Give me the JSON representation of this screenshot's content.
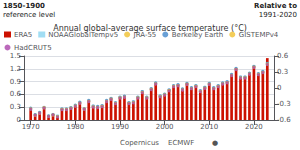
{
  "chart_data": {
    "type": "bar",
    "title": "Annual global-average surface temperature (°C)",
    "annotations": [
      "1850-1900",
      "reference level",
      "Relative to",
      "1991-2020",
      "Copernicus",
      "ECMWF",
      "●"
    ],
    "x": [
      1970,
      1971,
      1972,
      1973,
      1974,
      1975,
      1976,
      1977,
      1978,
      1979,
      1980,
      1981,
      1982,
      1983,
      1984,
      1985,
      1986,
      1987,
      1988,
      1989,
      1990,
      1991,
      1992,
      1993,
      1994,
      1995,
      1996,
      1997,
      1998,
      1999,
      2000,
      2001,
      2002,
      2003,
      2004,
      2005,
      2006,
      2007,
      2008,
      2009,
      2010,
      2011,
      2012,
      2013,
      2014,
      2015,
      2016,
      2017,
      2018,
      2019,
      2020,
      2021,
      2022,
      2023
    ],
    "xlim": [
      1968.5,
      2024.5
    ],
    "xticks": [
      1970,
      1980,
      1990,
      2000,
      2010,
      2020
    ],
    "ylim": [
      0,
      1.5
    ],
    "yticks": [
      0,
      0.3,
      0.6,
      0.9,
      1.2,
      1.5
    ],
    "y2lim": [
      -0.6,
      0.6
    ],
    "y2ticks": [
      -0.6,
      -0.3,
      0,
      0.3,
      0.6
    ],
    "grid": true,
    "legend": "upper left",
    "series": [
      {
        "name": "ERA5",
        "type": "bar",
        "color": "#cc1100",
        "values": [
          0.28,
          0.13,
          0.18,
          0.3,
          0.1,
          0.14,
          0.1,
          0.27,
          0.27,
          0.3,
          0.35,
          0.42,
          0.28,
          0.47,
          0.34,
          0.33,
          0.35,
          0.47,
          0.52,
          0.42,
          0.55,
          0.57,
          0.42,
          0.44,
          0.55,
          0.68,
          0.55,
          0.75,
          0.88,
          0.58,
          0.62,
          0.72,
          0.82,
          0.84,
          0.74,
          0.87,
          0.77,
          0.82,
          0.7,
          0.78,
          0.87,
          0.77,
          0.82,
          0.88,
          0.91,
          1.08,
          1.22,
          1.02,
          1.02,
          1.11,
          1.27,
          1.1,
          1.15,
          1.45
        ]
      },
      {
        "name": "NOAAGlobalTempv5",
        "type": "scatter",
        "marker": "square",
        "color": "#89d4f0",
        "values": [
          0.26,
          0.12,
          0.17,
          0.29,
          0.09,
          0.13,
          0.09,
          0.26,
          0.26,
          0.29,
          0.34,
          0.41,
          0.26,
          0.45,
          0.32,
          0.31,
          0.33,
          0.45,
          0.5,
          0.4,
          0.53,
          0.55,
          0.4,
          0.42,
          0.53,
          0.66,
          0.53,
          0.73,
          0.86,
          0.56,
          0.6,
          0.7,
          0.8,
          0.82,
          0.72,
          0.85,
          0.75,
          0.8,
          0.68,
          0.76,
          0.85,
          0.75,
          0.8,
          0.86,
          0.89,
          1.06,
          1.2,
          1.0,
          1.0,
          1.09,
          1.25,
          1.08,
          1.13,
          1.32
        ]
      },
      {
        "name": "JRA-55",
        "type": "scatter",
        "marker": "circle",
        "color": "#f0c030",
        "values": [
          0.27,
          0.12,
          0.17,
          0.29,
          0.09,
          0.12,
          0.08,
          0.25,
          0.25,
          0.28,
          0.33,
          0.4,
          0.26,
          0.44,
          0.31,
          0.3,
          0.32,
          0.44,
          0.49,
          0.39,
          0.52,
          0.54,
          0.39,
          0.41,
          0.52,
          0.65,
          0.52,
          0.72,
          0.85,
          0.55,
          0.59,
          0.69,
          0.79,
          0.81,
          0.71,
          0.84,
          0.74,
          0.79,
          0.67,
          0.75,
          0.84,
          0.74,
          0.79,
          0.85,
          0.88,
          1.05,
          1.19,
          0.99,
          0.99,
          1.08,
          1.24,
          1.07,
          1.12,
          1.31
        ]
      },
      {
        "name": "Berkeley Earth",
        "type": "scatter",
        "marker": "circle",
        "color": "#4488cc",
        "values": [
          0.28,
          0.13,
          0.18,
          0.3,
          0.1,
          0.13,
          0.09,
          0.26,
          0.26,
          0.29,
          0.35,
          0.42,
          0.27,
          0.46,
          0.33,
          0.32,
          0.34,
          0.46,
          0.51,
          0.41,
          0.54,
          0.56,
          0.41,
          0.43,
          0.54,
          0.67,
          0.54,
          0.74,
          0.87,
          0.57,
          0.61,
          0.71,
          0.81,
          0.83,
          0.73,
          0.86,
          0.76,
          0.81,
          0.69,
          0.77,
          0.86,
          0.76,
          0.81,
          0.87,
          0.9,
          1.07,
          1.21,
          1.01,
          1.01,
          1.1,
          1.26,
          1.09,
          1.14,
          1.33
        ]
      },
      {
        "name": "GISTEMPv4",
        "type": "scatter",
        "marker": "circle",
        "color": "#f0c030",
        "values": [
          0.26,
          0.11,
          0.16,
          0.29,
          0.08,
          0.12,
          0.08,
          0.25,
          0.25,
          0.28,
          0.33,
          0.4,
          0.26,
          0.44,
          0.31,
          0.3,
          0.32,
          0.44,
          0.49,
          0.39,
          0.52,
          0.54,
          0.39,
          0.41,
          0.52,
          0.65,
          0.52,
          0.72,
          0.85,
          0.55,
          0.59,
          0.69,
          0.79,
          0.81,
          0.71,
          0.84,
          0.74,
          0.79,
          0.67,
          0.75,
          0.84,
          0.74,
          0.79,
          0.85,
          0.88,
          1.05,
          1.19,
          0.99,
          0.99,
          1.08,
          1.24,
          1.07,
          1.12,
          1.31
        ]
      },
      {
        "name": "HadCRUT5",
        "type": "scatter",
        "marker": "circle",
        "color": "#aa44aa",
        "values": [
          0.25,
          0.11,
          0.16,
          0.28,
          0.08,
          0.12,
          0.07,
          0.24,
          0.24,
          0.27,
          0.32,
          0.39,
          0.25,
          0.43,
          0.3,
          0.29,
          0.31,
          0.43,
          0.48,
          0.38,
          0.51,
          0.53,
          0.38,
          0.4,
          0.51,
          0.64,
          0.51,
          0.71,
          0.84,
          0.54,
          0.58,
          0.68,
          0.78,
          0.8,
          0.7,
          0.83,
          0.73,
          0.78,
          0.66,
          0.74,
          0.83,
          0.73,
          0.78,
          0.84,
          0.87,
          1.04,
          1.18,
          0.98,
          0.98,
          1.07,
          1.23,
          1.06,
          1.11,
          1.3
        ]
      }
    ]
  }
}
